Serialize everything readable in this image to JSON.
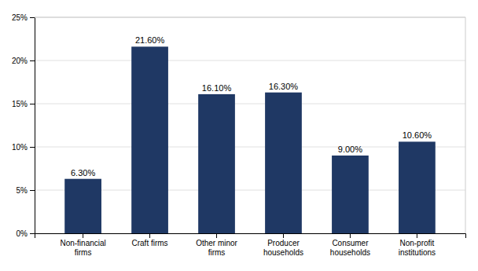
{
  "chart_data": {
    "type": "bar",
    "categories": [
      "Non-financial\nfirms",
      "Craft firms",
      "Other minor\nfirms",
      "Producer\nhouseholds",
      "Consumer\nhouseholds",
      "Non-profit\ninstitutions"
    ],
    "values": [
      6.3,
      21.6,
      16.1,
      16.3,
      9.0,
      10.6
    ],
    "value_labels": [
      "6.30%",
      "21.60%",
      "16.10%",
      "16.30%",
      "9.00%",
      "10.60%"
    ],
    "data_labels": true,
    "color": "#1F3864",
    "ylim": [
      0,
      25
    ],
    "yticks": [
      {
        "value": 0,
        "label": "0%"
      },
      {
        "value": 5,
        "label": "5%"
      },
      {
        "value": 10,
        "label": "10%"
      },
      {
        "value": 15,
        "label": "15%"
      },
      {
        "value": 20,
        "label": "20%"
      },
      {
        "value": 25,
        "label": "25%"
      }
    ],
    "grid": true
  }
}
